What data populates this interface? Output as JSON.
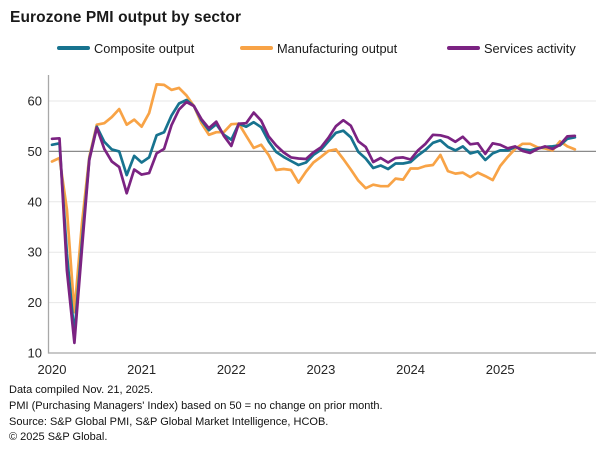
{
  "title": "Eurozone PMI output by sector",
  "colors": {
    "composite": "#17738F",
    "manufacturing": "#F8A346",
    "services": "#7B2382",
    "grid_light": "#e7e7e7",
    "grid_50": "#8a8a8a",
    "axis": "#a8a8a8",
    "tick_text": "#262626"
  },
  "chart_data": {
    "type": "line",
    "title": "Eurozone PMI output by sector",
    "x_start": "2020-01",
    "x_interval": "monthly",
    "x_tick_labels": [
      "2020",
      "2021",
      "2022",
      "2023",
      "2024",
      "2025"
    ],
    "yticks": [
      10,
      20,
      30,
      40,
      50,
      60
    ],
    "ylim": [
      10,
      65
    ],
    "reference_line": 50,
    "grid": true,
    "legend_position": "top",
    "series": [
      {
        "name": "Composite output",
        "color": "#17738F",
        "values": [
          51.3,
          51.6,
          29.7,
          13.6,
          31.9,
          48.5,
          54.9,
          51.9,
          50.4,
          50.0,
          45.3,
          49.1,
          47.8,
          48.8,
          53.2,
          53.8,
          57.1,
          59.5,
          60.2,
          59.0,
          56.2,
          54.2,
          55.4,
          53.3,
          52.3,
          55.5,
          54.9,
          55.8,
          54.8,
          52.0,
          49.9,
          48.9,
          48.1,
          47.3,
          47.8,
          49.3,
          50.3,
          52.0,
          53.7,
          54.1,
          52.8,
          49.9,
          48.6,
          46.7,
          47.2,
          46.5,
          47.6,
          47.6,
          47.9,
          49.2,
          50.3,
          51.7,
          52.2,
          50.9,
          50.2,
          51.0,
          49.6,
          50.0,
          48.3,
          49.6,
          50.2,
          50.2,
          50.9,
          50.4,
          50.2,
          50.6,
          50.9,
          51.0,
          51.2,
          52.5,
          52.8
        ]
      },
      {
        "name": "Manufacturing output",
        "color": "#F8A346",
        "values": [
          48.0,
          48.7,
          38.5,
          18.1,
          35.6,
          48.9,
          55.3,
          55.6,
          56.8,
          58.4,
          55.3,
          56.3,
          54.9,
          57.6,
          63.3,
          63.2,
          62.2,
          62.6,
          61.1,
          59.0,
          55.6,
          53.3,
          53.8,
          53.8,
          55.4,
          55.5,
          53.1,
          50.7,
          51.3,
          49.3,
          46.3,
          46.5,
          46.3,
          43.8,
          46.0,
          47.8,
          48.9,
          50.1,
          50.4,
          48.5,
          46.4,
          44.2,
          42.7,
          43.4,
          43.1,
          43.1,
          44.6,
          44.4,
          46.6,
          46.6,
          47.1,
          47.3,
          49.3,
          46.1,
          45.6,
          45.8,
          44.9,
          45.8,
          45.1,
          44.3,
          47.1,
          48.9,
          50.5,
          51.5,
          51.5,
          50.8,
          50.6,
          50.2,
          52.0,
          51.0,
          50.4
        ]
      },
      {
        "name": "Services activity",
        "color": "#7B2382",
        "values": [
          52.5,
          52.6,
          26.4,
          12.0,
          30.5,
          48.3,
          54.7,
          50.5,
          48.0,
          46.9,
          41.7,
          46.4,
          45.4,
          45.7,
          49.6,
          50.5,
          55.2,
          58.3,
          59.8,
          59.0,
          56.4,
          54.6,
          55.9,
          53.1,
          51.1,
          55.5,
          55.6,
          57.7,
          56.1,
          53.0,
          51.2,
          49.8,
          48.8,
          48.6,
          48.5,
          49.8,
          50.8,
          52.7,
          55.0,
          56.2,
          55.1,
          52.0,
          50.9,
          47.9,
          48.7,
          47.8,
          48.7,
          48.8,
          48.4,
          50.2,
          51.5,
          53.3,
          53.2,
          52.8,
          51.9,
          52.9,
          51.4,
          51.6,
          49.5,
          51.6,
          51.3,
          50.6,
          51.0,
          50.1,
          49.7,
          50.5,
          51.0,
          50.5,
          51.3,
          53.0,
          53.1
        ]
      }
    ]
  },
  "footer": {
    "lines": [
      "Data compiled Nov. 21, 2025.",
      "PMI (Purchasing Managers' Index) based on 50 = no change on prior month.",
      "Source: S&P Global PMI, S&P Global Market Intelligence, HCOB.",
      "© 2025 S&P Global."
    ]
  }
}
